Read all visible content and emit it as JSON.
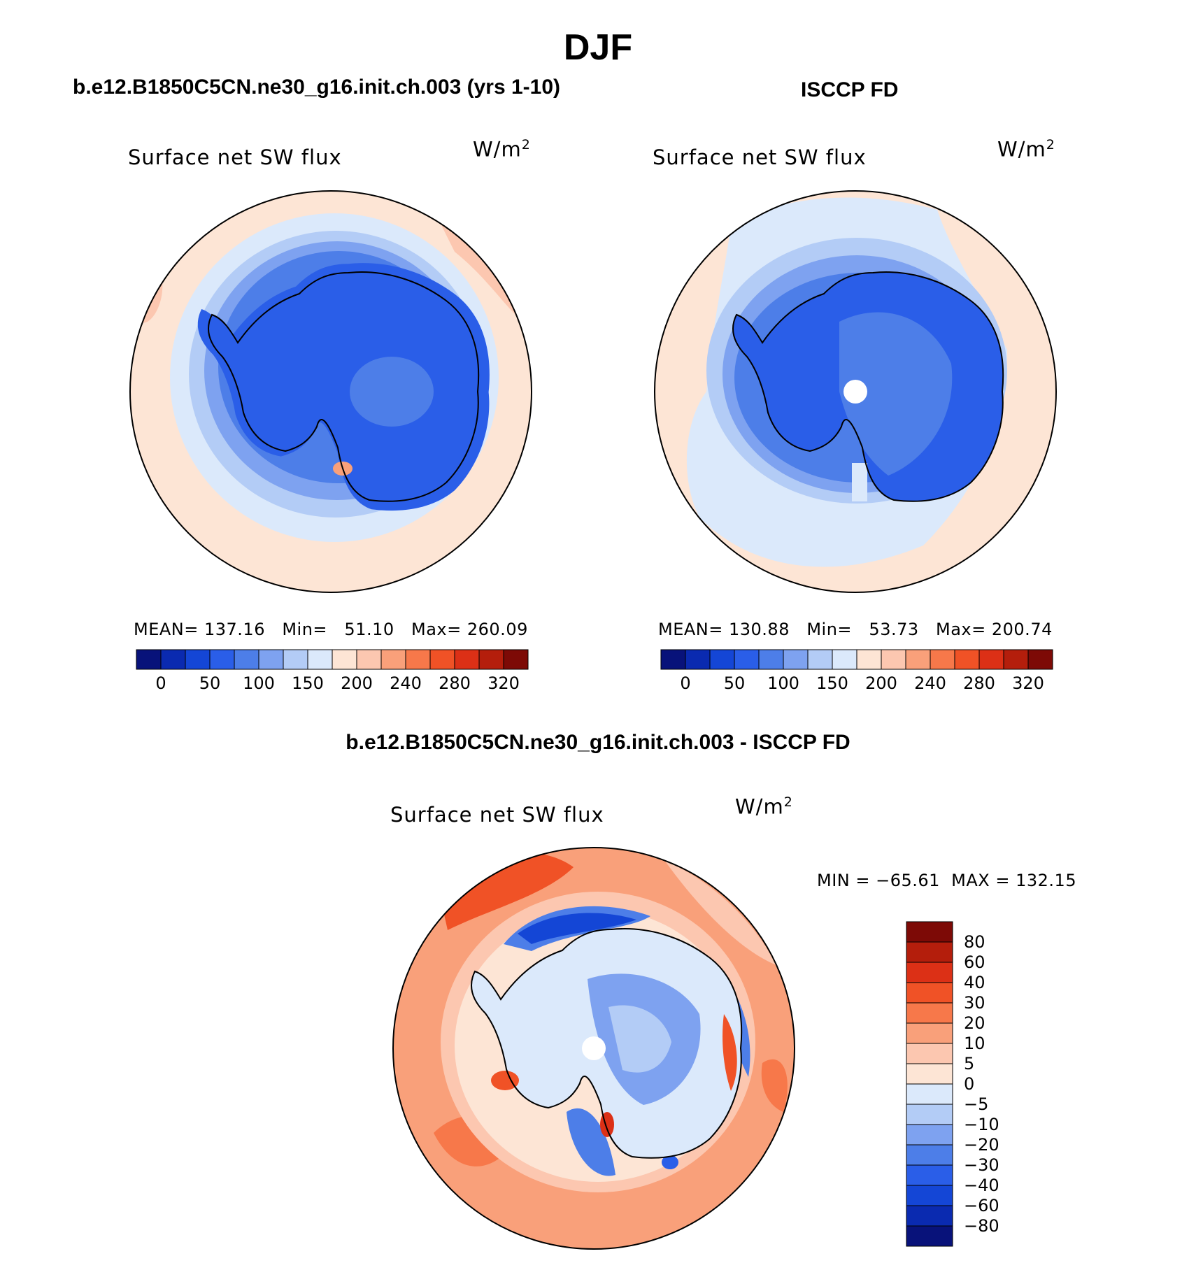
{
  "season": "DJF",
  "panels": [
    {
      "title": "b.e12.B1850C5CN.ne30_g16.init.ch.003 (yrs 1-10)",
      "subtitle": "Surface net SW flux",
      "units": "W/m",
      "units_sup": "2",
      "stats": "MEAN= 137.16   Min=   51.10   Max= 260.09"
    },
    {
      "title": "ISCCP FD",
      "subtitle": "Surface net SW flux",
      "units": "W/m",
      "units_sup": "2",
      "stats": "MEAN= 130.88   Min=   53.73   Max= 200.74"
    },
    {
      "title": "b.e12.B1850C5CN.ne30_g16.init.ch.003 - ISCCP FD",
      "subtitle": "Surface net SW flux",
      "units": "W/m",
      "units_sup": "2",
      "stats": "MIN = −65.61  MAX = 132.15"
    }
  ],
  "colorbar_main": {
    "ticks": [
      "0",
      "50",
      "100",
      "150",
      "200",
      "240",
      "280",
      "320"
    ],
    "colors": [
      "#08127a",
      "#0a2ab0",
      "#1446d6",
      "#2a5ee8",
      "#4d7ee8",
      "#7ea2f0",
      "#b3ccf6",
      "#dbe9fb",
      "#fde5d5",
      "#fcc7b0",
      "#f9a07a",
      "#f7784a",
      "#f05226",
      "#dc3016",
      "#b41e0c",
      "#7d0a06"
    ]
  },
  "colorbar_diff": {
    "ticks": [
      "80",
      "60",
      "40",
      "30",
      "20",
      "10",
      "5",
      "0",
      "−5",
      "−10",
      "−20",
      "−30",
      "−40",
      "−60",
      "−80"
    ],
    "colors": [
      "#7d0a06",
      "#b41e0c",
      "#dc3016",
      "#f05226",
      "#f7784a",
      "#f9a07a",
      "#fcc7b0",
      "#fde5d5",
      "#dbe9fb",
      "#b3ccf6",
      "#7ea2f0",
      "#4d7ee8",
      "#2a5ee8",
      "#1446d6",
      "#0a2ab0",
      "#08127a"
    ]
  }
}
